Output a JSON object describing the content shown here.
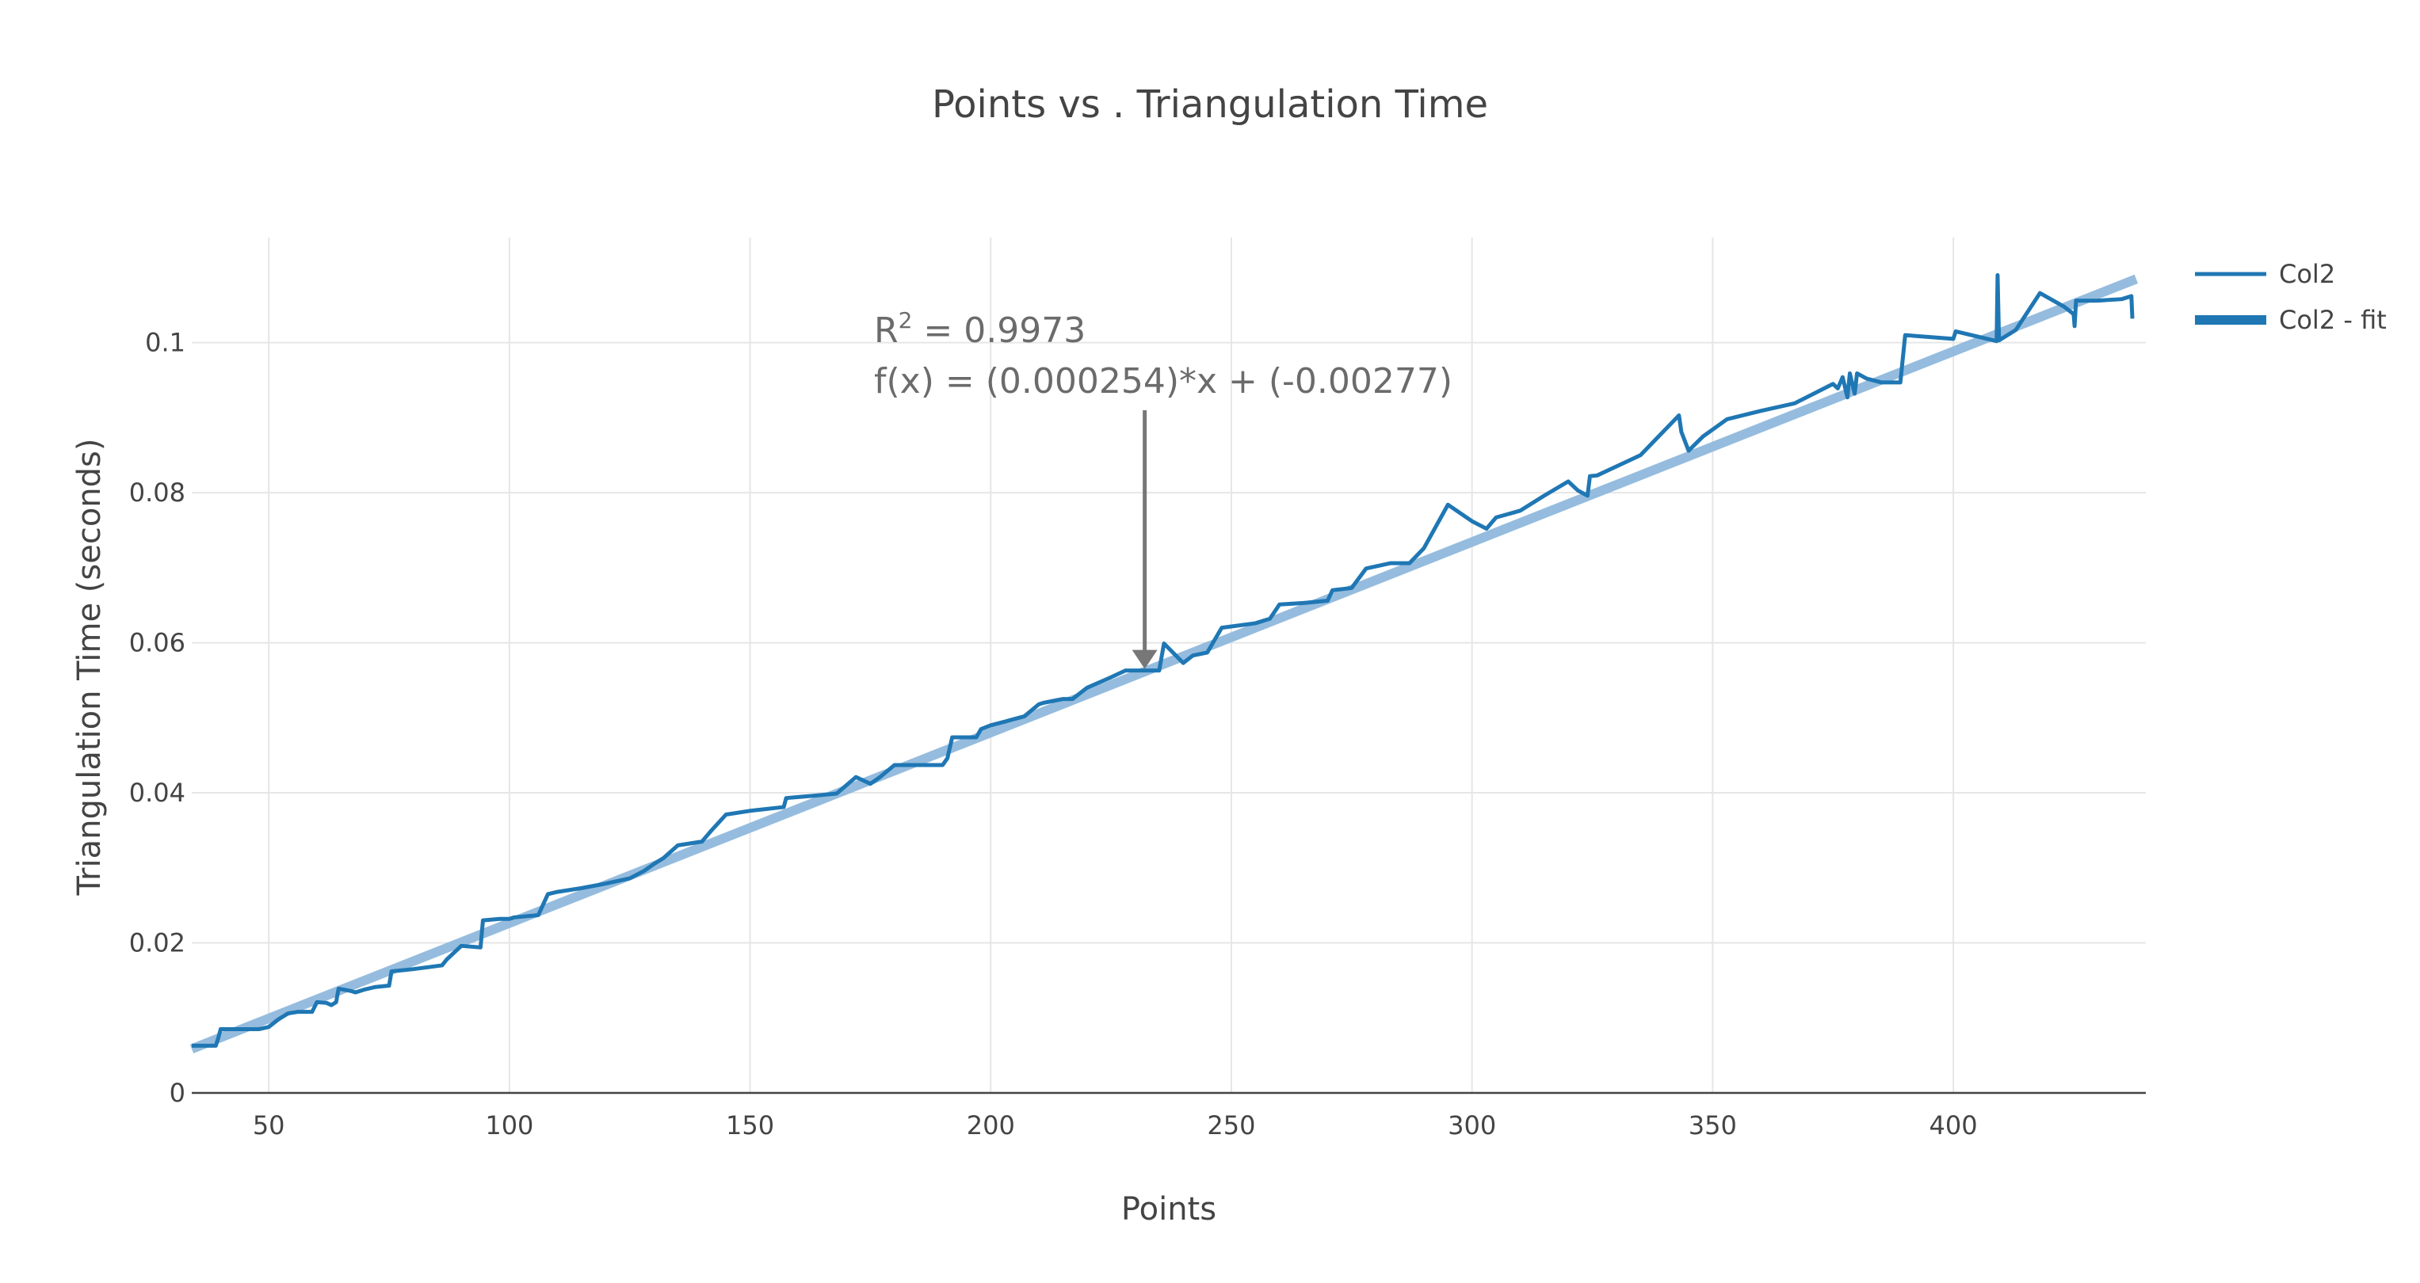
{
  "chart_data": {
    "type": "line",
    "title": "Points vs . Triangulation Time",
    "xlabel": "Points",
    "ylabel": "Triangulation Time (seconds)",
    "xlim": [
      34,
      440
    ],
    "ylim": [
      0,
      0.114
    ],
    "xticks": [
      50,
      100,
      150,
      200,
      250,
      300,
      350,
      400
    ],
    "yticks": [
      0,
      0.02,
      0.04,
      0.06,
      0.08,
      0.1
    ],
    "ytick_labels": [
      "0",
      "0.02",
      "0.04",
      "0.06",
      "0.08",
      "0.1"
    ],
    "grid": true,
    "legend_position": "top-right",
    "series": [
      {
        "name": "Col2",
        "color": "#1f77b4",
        "x": [
          34,
          39,
          39.5,
          40,
          45,
          48,
          50,
          52,
          54,
          56,
          58,
          59,
          60,
          62,
          63,
          64,
          64.5,
          67,
          68,
          70,
          72,
          75,
          75.5,
          80,
          86,
          87,
          90,
          94,
          94.5,
          98,
          100,
          101,
          106,
          108,
          110,
          115,
          120,
          125,
          128,
          130,
          132,
          135,
          140,
          142,
          145,
          150,
          157,
          157.5,
          163,
          168,
          172,
          175,
          177,
          180,
          183,
          190,
          191,
          192,
          195,
          197,
          198,
          200,
          203,
          207,
          210,
          211,
          215,
          217,
          220,
          225,
          228,
          230,
          232,
          233,
          235,
          236,
          240,
          242,
          245,
          248,
          255,
          258,
          260,
          265,
          270,
          271,
          275,
          278,
          283,
          287,
          290,
          295,
          300,
          303,
          305,
          310,
          315,
          320,
          322,
          324,
          324.5,
          326,
          328,
          335,
          343,
          343.5,
          345,
          348,
          353,
          360,
          367,
          375,
          376,
          377,
          378,
          378.5,
          379.5,
          380,
          382,
          385,
          389,
          390,
          400,
          400.5,
          409,
          409.2,
          409.5,
          413,
          418,
          423,
          425,
          425.2,
          425.5,
          430,
          435,
          437,
          437.2
        ],
        "y": [
          0.0063,
          0.0063,
          0.0073,
          0.0085,
          0.0085,
          0.0085,
          0.0088,
          0.0098,
          0.0106,
          0.0108,
          0.0108,
          0.0108,
          0.0121,
          0.012,
          0.0117,
          0.0121,
          0.0139,
          0.0136,
          0.0134,
          0.0138,
          0.0141,
          0.0143,
          0.0162,
          0.0165,
          0.017,
          0.0178,
          0.0196,
          0.0194,
          0.023,
          0.0232,
          0.0232,
          0.0234,
          0.0237,
          0.0265,
          0.0268,
          0.0273,
          0.0279,
          0.0286,
          0.0296,
          0.0305,
          0.0313,
          0.033,
          0.0335,
          0.035,
          0.0371,
          0.0376,
          0.0381,
          0.0393,
          0.0396,
          0.0399,
          0.0421,
          0.0412,
          0.0421,
          0.0437,
          0.0437,
          0.0437,
          0.0446,
          0.0474,
          0.0474,
          0.0474,
          0.0485,
          0.049,
          0.0495,
          0.0502,
          0.0518,
          0.052,
          0.0525,
          0.0525,
          0.054,
          0.0554,
          0.0563,
          0.0563,
          0.0563,
          0.0563,
          0.0563,
          0.0599,
          0.0573,
          0.0583,
          0.0587,
          0.062,
          0.0626,
          0.0632,
          0.0651,
          0.0653,
          0.0656,
          0.067,
          0.0673,
          0.0699,
          0.0706,
          0.0706,
          0.0726,
          0.0784,
          0.0762,
          0.0752,
          0.0767,
          0.0776,
          0.0796,
          0.0815,
          0.0803,
          0.0796,
          0.0822,
          0.0823,
          0.0829,
          0.085,
          0.0903,
          0.0881,
          0.0856,
          0.0875,
          0.0898,
          0.0909,
          0.0919,
          0.0945,
          0.0939,
          0.0954,
          0.0927,
          0.0959,
          0.0932,
          0.0959,
          0.0952,
          0.0947,
          0.0947,
          0.101,
          0.1005,
          0.1015,
          0.1002,
          0.109,
          0.1003,
          0.1017,
          0.1066,
          0.1048,
          0.1038,
          0.1022,
          0.1056,
          0.1056,
          0.1058,
          0.1062,
          0.1032
        ]
      },
      {
        "name": "Col2 - fit",
        "color": "#1f77b4",
        "x": [
          34,
          438
        ],
        "y": [
          0.005866,
          0.108482
        ]
      }
    ],
    "annotation": {
      "line1_base": "R",
      "line1_sup": "2",
      "line1_rest": " = 0.9973",
      "line2": "f(x) = (0.000254)*x + (-0.00277)",
      "x": 232,
      "y": 0.0563
    }
  }
}
